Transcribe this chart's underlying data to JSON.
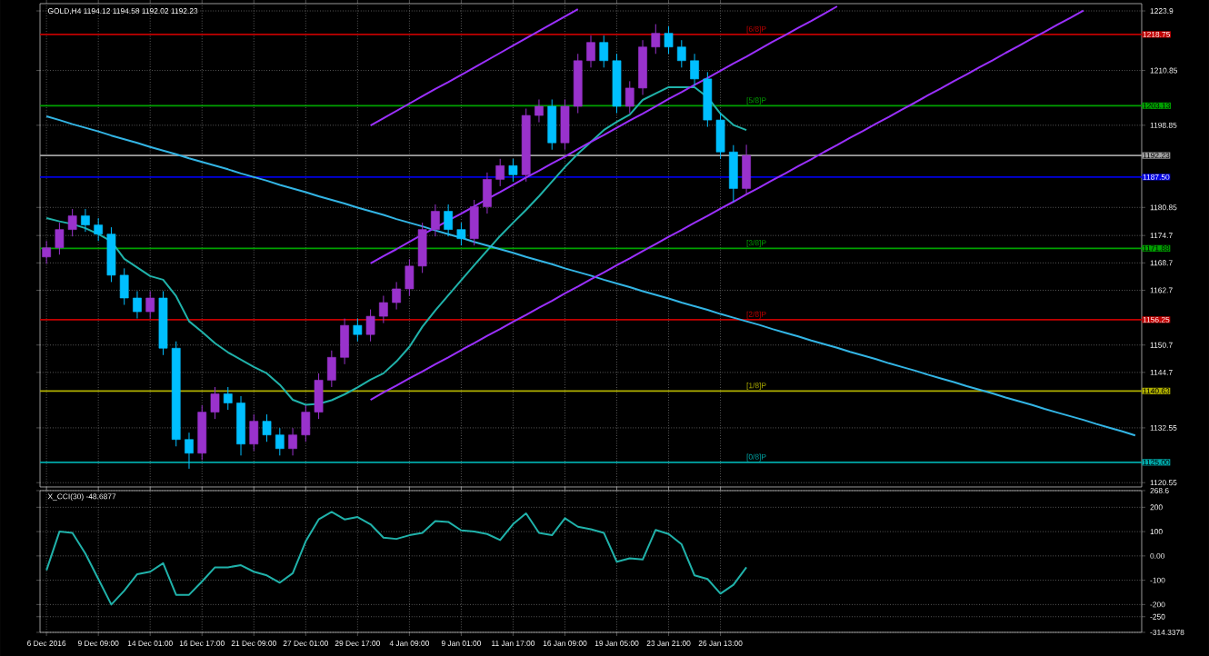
{
  "chart_data": [
    {
      "type": "candlestick",
      "title": "GOLD,H4 1194.12 1194.58 1192.02 1192.23",
      "categories": [
        null,
        null,
        null,
        null,
        null,
        null,
        null,
        null,
        null,
        null,
        null,
        null,
        null,
        null,
        null,
        null,
        null,
        null,
        null,
        null,
        null,
        null,
        null,
        null,
        null,
        null,
        null,
        null,
        null,
        null,
        null,
        null,
        null,
        null,
        null,
        null,
        null,
        null,
        null,
        null,
        null,
        null,
        null,
        null,
        null,
        null,
        null,
        null,
        null,
        null,
        null,
        null,
        null,
        null,
        null,
        null,
        null,
        null,
        null,
        null,
        null,
        null,
        null,
        null,
        null,
        null,
        null,
        null,
        null,
        null,
        null,
        null,
        null,
        null,
        null,
        null,
        null,
        null,
        null,
        null,
        null,
        null,
        null,
        null,
        null
      ],
      "ohlc": [
        [
          1170,
          1173.5,
          1168.5,
          1172
        ],
        [
          1172,
          1177.5,
          1170.5,
          1176
        ],
        [
          1176,
          1180.5,
          1174.5,
          1179
        ],
        [
          1179,
          1180.5,
          1175.5,
          1177
        ],
        [
          1177,
          1178.5,
          1173.5,
          1175
        ],
        [
          1175,
          1176.5,
          1164.5,
          1166
        ],
        [
          1166,
          1167.5,
          1159.5,
          1161
        ],
        [
          1161,
          1162.5,
          1156.5,
          1158
        ],
        [
          1158,
          1162.5,
          1156.5,
          1161
        ],
        [
          1161,
          1162.5,
          1148.5,
          1150
        ],
        [
          1150,
          1151.5,
          1128.5,
          1130
        ],
        [
          1130,
          1131.5,
          1123.6,
          1127
        ],
        [
          1127,
          1137.5,
          1125.5,
          1136
        ],
        [
          1136,
          1141.5,
          1134.5,
          1140
        ],
        [
          1140,
          1141.5,
          1136.5,
          1138
        ],
        [
          1138,
          1139.5,
          1126.5,
          1129
        ],
        [
          1129,
          1135.5,
          1127.5,
          1134
        ],
        [
          1134,
          1135.5,
          1129.5,
          1131
        ],
        [
          1131,
          1132.5,
          1126.5,
          1128
        ],
        [
          1128,
          1132.5,
          1126.5,
          1131
        ],
        [
          1131,
          1137.5,
          1129.5,
          1136
        ],
        [
          1136,
          1144.5,
          1134.5,
          1143
        ],
        [
          1143,
          1149.5,
          1141.5,
          1148
        ],
        [
          1148,
          1156.5,
          1146.5,
          1155
        ],
        [
          1155,
          1156.5,
          1151.5,
          1153
        ],
        [
          1153,
          1158.5,
          1151.5,
          1157
        ],
        [
          1157,
          1161.5,
          1155.5,
          1160
        ],
        [
          1160,
          1164.5,
          1158.5,
          1163
        ],
        [
          1163,
          1169.5,
          1161.5,
          1168
        ],
        [
          1168,
          1177.5,
          1166.5,
          1176
        ],
        [
          1176,
          1181.5,
          1174.5,
          1180
        ],
        [
          1180,
          1181.5,
          1174.5,
          1176
        ],
        [
          1176,
          1177.5,
          1172.5,
          1174
        ],
        [
          1174,
          1182.5,
          1172.5,
          1181
        ],
        [
          1181,
          1188.5,
          1179.5,
          1187
        ],
        [
          1187,
          1191.5,
          1185.5,
          1190
        ],
        [
          1190,
          1191.5,
          1186.5,
          1188
        ],
        [
          1188,
          1202.5,
          1186.5,
          1201
        ],
        [
          1201,
          1204.5,
          1199.5,
          1203
        ],
        [
          1203,
          1204.5,
          1193.5,
          1195
        ],
        [
          1195,
          1204.5,
          1193.5,
          1203
        ],
        [
          1203,
          1214.5,
          1201.5,
          1213
        ],
        [
          1213,
          1218.5,
          1211.5,
          1217
        ],
        [
          1217,
          1218.5,
          1211.5,
          1213
        ],
        [
          1213,
          1214.5,
          1201.5,
          1203
        ],
        [
          1203,
          1208.5,
          1201.5,
          1207
        ],
        [
          1207,
          1217.5,
          1205.5,
          1216
        ],
        [
          1216,
          1221,
          1214.5,
          1219
        ],
        [
          1219,
          1220.5,
          1214.5,
          1216
        ],
        [
          1216,
          1217.5,
          1211.5,
          1213
        ],
        [
          1213,
          1214.5,
          1207.5,
          1209
        ],
        [
          1209,
          1210.5,
          1198.5,
          1200
        ],
        [
          1200,
          1201.5,
          1191.5,
          1193
        ],
        [
          1193,
          1194.5,
          1182,
          1185
        ],
        [
          1185,
          1194.58,
          1183.5,
          1192.23
        ],
        null,
        null,
        null,
        null,
        null,
        null,
        null,
        null,
        null,
        null,
        null,
        null,
        null,
        null,
        null,
        null,
        null,
        null,
        null,
        null,
        null,
        null,
        null,
        null,
        null,
        null,
        null,
        null,
        null,
        null
      ],
      "ylim": [
        1119.6,
        1225.5
      ],
      "yticks": [
        1223.9,
        1210.85,
        1198.85,
        1180.85,
        1174.7,
        1168.7,
        1162.7,
        1150.7,
        1144.7,
        1132.55,
        1120.55
      ],
      "tick_labels": "y",
      "grid": true,
      "series": [
        {
          "type": "line",
          "color": "#20b2aa",
          "values": [
            1178.5,
            1177.8,
            1177.2,
            1176.3,
            1175.0,
            1173.4,
            1169.6,
            1167.7,
            1165.8,
            1165.0,
            1161.4,
            1155.9,
            1153.6,
            1151.1,
            1149.1,
            1147.5,
            1145.9,
            1144.5,
            1142.0,
            1138.7,
            1137.6,
            1137.8,
            1138.6,
            1139.9,
            1141.4,
            1143.1,
            1144.5,
            1147.1,
            1150.3,
            1154.7,
            1158.3,
            1161.6,
            1164.9,
            1168.2,
            1171.4,
            1174.6,
            1177.5,
            1180.3,
            1183.3,
            1186.5,
            1189.7,
            1192.6,
            1195.2,
            1197.8,
            1199.6,
            1201.2,
            1204.4,
            1205.8,
            1207.2,
            1207.2,
            1207.2,
            1205.0,
            1201.4,
            1198.9,
            1197.8,
            null,
            null,
            null,
            null,
            null,
            null,
            null,
            null,
            null,
            null,
            null,
            null,
            null,
            null,
            null,
            null,
            null,
            null,
            null,
            null,
            null,
            null,
            null,
            null,
            null,
            null,
            null,
            null,
            null,
            null
          ]
        },
        {
          "type": "line",
          "color": "#33b5e5",
          "values": [
            1200.8,
            1200.0,
            1199.1,
            1198.3,
            1197.5,
            1196.6,
            1195.8,
            1195.0,
            1194.1,
            1193.3,
            1192.5,
            1191.6,
            1190.8,
            1190.0,
            1189.2,
            1188.3,
            1187.5,
            1186.7,
            1185.8,
            1185.0,
            1184.2,
            1183.3,
            1182.5,
            1181.7,
            1180.8,
            1180.0,
            1179.2,
            1178.3,
            1177.5,
            1176.7,
            1175.8,
            1175.0,
            1174.2,
            1173.3,
            1172.5,
            1171.7,
            1170.9,
            1170.0,
            1169.2,
            1168.4,
            1167.5,
            1166.7,
            1165.9,
            1165.0,
            1164.2,
            1163.4,
            1162.5,
            1161.7,
            1160.9,
            1160.0,
            1159.2,
            1158.4,
            1157.5,
            1156.7,
            1155.9,
            1155.1,
            1154.2,
            1153.4,
            1152.6,
            1151.7,
            1150.9,
            1150.1,
            1149.2,
            1148.4,
            1147.6,
            1146.7,
            1145.9,
            1145.1,
            1144.2,
            1143.4,
            1142.6,
            1141.7,
            1140.9,
            1140.1,
            1139.2,
            1138.4,
            1137.6,
            1136.7,
            1135.9,
            1135.1,
            1134.3,
            1133.4,
            1132.6,
            1131.8,
            1130.9
          ]
        },
        {
          "type": "line",
          "color": "#9b30ff",
          "values": [
            null,
            null,
            null,
            null,
            null,
            null,
            null,
            null,
            null,
            null,
            null,
            null,
            null,
            null,
            null,
            null,
            null,
            null,
            null,
            null,
            null,
            null,
            null,
            null,
            null,
            1198.8,
            1200.4,
            1202.0,
            1203.6,
            1205.2,
            1206.8,
            1208.3,
            1209.9,
            1211.5,
            1213.1,
            1214.7,
            1216.3,
            1217.9,
            1219.5,
            1221.1,
            1222.7,
            1224.3,
            null,
            null,
            null,
            null,
            null,
            null,
            null,
            null,
            null,
            null,
            null,
            null,
            null,
            null,
            null,
            null,
            null,
            null,
            null,
            null,
            null,
            null,
            null,
            null,
            null,
            null,
            null,
            null,
            null,
            null,
            null,
            null,
            null,
            null,
            null,
            null,
            null,
            null,
            null,
            null,
            null,
            null,
            null
          ]
        },
        {
          "type": "line",
          "color": "#9b30ff",
          "values": [
            null,
            null,
            null,
            null,
            null,
            null,
            null,
            null,
            null,
            null,
            null,
            null,
            null,
            null,
            null,
            null,
            null,
            null,
            null,
            null,
            null,
            null,
            null,
            null,
            null,
            1168.6,
            1170.2,
            1171.7,
            1173.3,
            1174.9,
            1176.4,
            1178.0,
            1179.5,
            1181.1,
            1182.7,
            1184.2,
            1185.8,
            1187.4,
            1188.9,
            1190.5,
            1192.0,
            1193.6,
            1195.2,
            1196.7,
            1198.3,
            1199.9,
            1201.4,
            1203.0,
            1204.6,
            1206.1,
            1207.7,
            1209.2,
            1210.8,
            1212.4,
            1213.9,
            1215.5,
            1217.1,
            1218.6,
            1220.2,
            1221.7,
            1223.3,
            1224.9,
            null,
            null,
            null,
            null,
            null,
            null,
            null,
            null,
            null,
            null,
            null,
            null,
            null,
            null,
            null,
            null,
            null,
            null,
            null,
            null,
            null,
            null,
            null
          ]
        },
        {
          "type": "line",
          "color": "#9b30ff",
          "values": [
            null,
            null,
            null,
            null,
            null,
            null,
            null,
            null,
            null,
            null,
            null,
            null,
            null,
            null,
            null,
            null,
            null,
            null,
            null,
            null,
            null,
            null,
            null,
            null,
            null,
            1138.7,
            1140.3,
            1141.8,
            1143.4,
            1144.9,
            1146.5,
            1148.0,
            1149.6,
            1151.1,
            1152.7,
            1154.2,
            1155.8,
            1157.3,
            1158.9,
            1160.4,
            1162.0,
            1163.5,
            1165.1,
            1166.6,
            1168.2,
            1169.7,
            1171.3,
            1172.8,
            1174.4,
            1175.9,
            1177.5,
            1179.0,
            1180.6,
            1182.1,
            1183.7,
            1185.2,
            1186.8,
            1188.3,
            1189.9,
            1191.4,
            1193.0,
            1194.5,
            1196.1,
            1197.6,
            1199.2,
            1200.7,
            1202.3,
            1203.8,
            1205.4,
            1206.9,
            1208.5,
            1210.0,
            1211.6,
            1213.1,
            1214.7,
            1216.2,
            1217.8,
            1219.3,
            1220.9,
            1222.4,
            1224.0,
            null,
            null,
            null,
            null
          ]
        }
      ],
      "ref_lines": [
        {
          "axis": "y",
          "value": 1218.75,
          "label": "1218.75",
          "color": "#c00000"
        },
        {
          "axis": "y",
          "value": 1203.13,
          "label": "1203.13",
          "color": "#00a000"
        },
        {
          "axis": "y",
          "value": 1192.23,
          "label": "1192.23",
          "color": "#a0a0a0"
        },
        {
          "axis": "y",
          "value": 1187.5,
          "label": "1187.50",
          "color": "#0000e0"
        },
        {
          "axis": "y",
          "value": 1171.88,
          "label": "1171.88",
          "color": "#00a000"
        },
        {
          "axis": "y",
          "value": 1156.25,
          "label": "1156.25",
          "color": "#c00000"
        },
        {
          "axis": "y",
          "value": 1140.63,
          "label": "1140.63",
          "color": "#b0b000"
        },
        {
          "axis": "y",
          "value": 1125,
          "label": "1125.00",
          "color": "#00a8a8"
        }
      ],
      "annotations": [
        {
          "text": "[6/8]P",
          "y": 1218.75
        },
        {
          "text": "[5/8]P",
          "y": 1203.13
        },
        {
          "text": "[3/8]P",
          "y": 1171.88
        },
        {
          "text": "[2/8]P",
          "y": 1156.25
        },
        {
          "text": "[1/8]P",
          "y": 1140.63
        },
        {
          "text": "[0/8]P",
          "y": 1125
        }
      ]
    },
    {
      "type": "line",
      "title": "X_CCI(30) -48.6877",
      "color": "#20b2aa",
      "categories": [
        "6 Dec 2016",
        null,
        null,
        null,
        "9 Dec 09:00",
        null,
        null,
        null,
        "14 Dec 01:00",
        null,
        null,
        null,
        "16 Dec 17:00",
        null,
        null,
        null,
        "21 Dec 09:00",
        null,
        null,
        null,
        "27 Dec 01:00",
        null,
        null,
        null,
        "29 Dec 17:00",
        null,
        null,
        null,
        "4 Jan 09:00",
        null,
        null,
        null,
        "9 Jan 01:00",
        null,
        null,
        null,
        "11 Jan 17:00",
        null,
        null,
        null,
        "16 Jan 09:00",
        null,
        null,
        null,
        "19 Jan 05:00",
        null,
        null,
        null,
        "23 Jan 21:00",
        null,
        null,
        null,
        "26 Jan 13:00",
        null,
        null,
        null,
        null,
        null,
        null,
        null,
        null,
        null,
        null,
        null,
        null,
        null,
        null,
        null,
        null,
        null,
        null,
        null,
        null,
        null,
        null,
        null,
        null,
        null,
        null,
        null,
        null,
        null,
        null,
        null,
        null
      ],
      "values": [
        -59,
        100,
        95,
        10,
        -95,
        -200,
        -143,
        -75,
        -65,
        -30,
        -160,
        -160,
        -105,
        -47,
        -47,
        -38,
        -65,
        -80,
        -110,
        -71,
        60,
        150,
        181,
        150,
        160,
        130,
        75,
        70,
        85,
        95,
        143,
        140,
        105,
        100,
        90,
        65,
        131,
        175,
        95,
        85,
        155,
        120,
        110,
        95,
        -24,
        -10,
        -15,
        107,
        90,
        48,
        -80,
        -95,
        -155,
        -119,
        -47,
        null,
        null,
        null,
        null,
        null,
        null,
        null,
        null,
        null,
        null,
        null,
        null,
        null,
        null,
        null,
        null,
        null,
        null,
        null,
        null,
        null,
        null,
        null,
        null,
        null,
        null,
        null,
        null,
        null,
        null
      ],
      "ylim": [
        -314.3378,
        268.6
      ],
      "yticks": [
        268.6,
        200,
        100,
        {
          "value": 0,
          "label": "0.00"
        },
        -100,
        -200,
        -250,
        -314.3378
      ],
      "grid": true
    }
  ]
}
